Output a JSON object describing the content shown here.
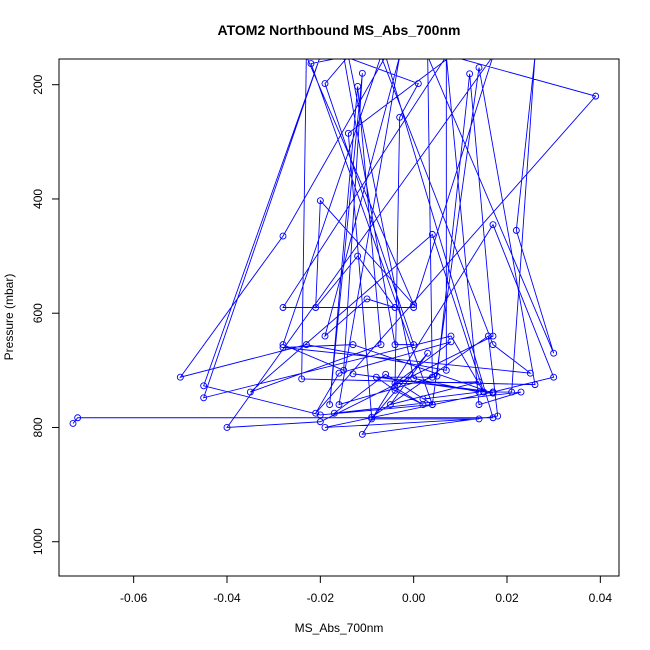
{
  "chart_data": {
    "type": "line",
    "title": "ATOM2 Northbound MS_Abs_700nm",
    "xlabel": "MS_Abs_700nm",
    "ylabel": "Pressure (mbar)",
    "xlim": [
      -0.076,
      0.044
    ],
    "ylim": [
      1060,
      155
    ],
    "y_axis_inverted": true,
    "x_ticks": [
      -0.06,
      -0.04,
      -0.02,
      0.0,
      0.02,
      0.04
    ],
    "x_tick_labels": [
      "-0.06",
      "-0.04",
      "-0.02",
      "0.00",
      "0.02",
      "0.04"
    ],
    "y_ticks": [
      200,
      400,
      600,
      800,
      1000
    ],
    "y_tick_labels": [
      "200",
      "400",
      "600",
      "800",
      "1000"
    ],
    "grid": false,
    "series_color": "#0000ff",
    "series": [
      {
        "marker": "open-circle",
        "points": [
          {
            "x": -0.073,
            "y": 793
          },
          {
            "x": -0.072,
            "y": 783
          },
          {
            "x": 0.017,
            "y": 783
          },
          {
            "x": -0.006,
            "y": 150
          },
          {
            "x": -0.028,
            "y": 465
          },
          {
            "x": -0.05,
            "y": 712
          },
          {
            "x": -0.023,
            "y": 655
          },
          {
            "x": 0.007,
            "y": 700
          },
          {
            "x": 0.007,
            "y": 150
          },
          {
            "x": -0.028,
            "y": 590
          },
          {
            "x": 0.0,
            "y": 590
          },
          {
            "x": 0.017,
            "y": 150
          },
          {
            "x": -0.04,
            "y": 800
          },
          {
            "x": -0.02,
            "y": 790
          },
          {
            "x": 0.017,
            "y": 640
          },
          {
            "x": 0.012,
            "y": 181
          },
          {
            "x": 0.005,
            "y": 710
          },
          {
            "x": -0.016,
            "y": 760
          },
          {
            "x": -0.003,
            "y": 150
          },
          {
            "x": -0.019,
            "y": 640
          },
          {
            "x": -0.01,
            "y": 575
          },
          {
            "x": -0.004,
            "y": 590
          },
          {
            "x": -0.012,
            "y": 500
          },
          {
            "x": -0.021,
            "y": 590
          },
          {
            "x": -0.02,
            "y": 403
          },
          {
            "x": 0.0,
            "y": 585
          },
          {
            "x": -0.023,
            "y": 150
          },
          {
            "x": -0.024,
            "y": 715
          },
          {
            "x": 0.026,
            "y": 725
          },
          {
            "x": 0.014,
            "y": 170
          },
          {
            "x": 0.004,
            "y": 760
          },
          {
            "x": -0.02,
            "y": 778
          },
          {
            "x": -0.045,
            "y": 727
          },
          {
            "x": -0.02,
            "y": 150
          },
          {
            "x": -0.045,
            "y": 748
          },
          {
            "x": 0.008,
            "y": 640
          },
          {
            "x": 0.015,
            "y": 738
          },
          {
            "x": 0.004,
            "y": 462
          },
          {
            "x": -0.035,
            "y": 738
          },
          {
            "x": -0.007,
            "y": 655
          },
          {
            "x": -0.012,
            "y": 203
          },
          {
            "x": -0.018,
            "y": 760
          },
          {
            "x": -0.011,
            "y": 180
          },
          {
            "x": -0.015,
            "y": 700
          },
          {
            "x": -0.028,
            "y": 655
          },
          {
            "x": -0.007,
            "y": 150
          },
          {
            "x": 0.017,
            "y": 655
          },
          {
            "x": 0.025,
            "y": 705
          },
          {
            "x": -0.028,
            "y": 660
          },
          {
            "x": -0.013,
            "y": 655
          },
          {
            "x": 0.017,
            "y": 740
          },
          {
            "x": -0.013,
            "y": 706
          },
          {
            "x": 0.017,
            "y": 738
          },
          {
            "x": -0.019,
            "y": 800
          },
          {
            "x": 0.014,
            "y": 785
          },
          {
            "x": -0.009,
            "y": 785
          },
          {
            "x": 0.003,
            "y": 670
          },
          {
            "x": -0.005,
            "y": 760
          },
          {
            "x": 0.014,
            "y": 720
          },
          {
            "x": -0.004,
            "y": 723
          },
          {
            "x": 0.008,
            "y": 650
          },
          {
            "x": -0.016,
            "y": 705
          },
          {
            "x": -0.021,
            "y": 775
          },
          {
            "x": 0.039,
            "y": 220
          },
          {
            "x": 0.008,
            "y": 150
          },
          {
            "x": -0.014,
            "y": 285
          },
          {
            "x": -0.009,
            "y": 782
          },
          {
            "x": 0.016,
            "y": 640
          },
          {
            "x": 0.018,
            "y": 780
          },
          {
            "x": -0.011,
            "y": 812
          },
          {
            "x": 0.017,
            "y": 445
          },
          {
            "x": 0.03,
            "y": 712
          },
          {
            "x": 0.017,
            "y": 738
          },
          {
            "x": 0.021,
            "y": 738
          },
          {
            "x": 0.026,
            "y": 150
          },
          {
            "x": 0.022,
            "y": 455
          },
          {
            "x": 0.03,
            "y": 670
          },
          {
            "x": 0.003,
            "y": 150
          },
          {
            "x": 0.004,
            "y": 712
          },
          {
            "x": -0.008,
            "y": 712
          },
          {
            "x": -0.004,
            "y": 735
          },
          {
            "x": 0.002,
            "y": 760
          },
          {
            "x": -0.004,
            "y": 730
          },
          {
            "x": -0.003,
            "y": 257
          },
          {
            "x": 0.001,
            "y": 198
          },
          {
            "x": -0.015,
            "y": 150
          },
          {
            "x": -0.004,
            "y": 655
          },
          {
            "x": 0.0,
            "y": 655
          },
          {
            "x": -0.019,
            "y": 198
          },
          {
            "x": -0.014,
            "y": 150
          },
          {
            "x": 0.007,
            "y": 150
          },
          {
            "x": 0.014,
            "y": 760
          },
          {
            "x": 0.023,
            "y": 738
          },
          {
            "x": -0.017,
            "y": 775
          },
          {
            "x": -0.006,
            "y": 707
          },
          {
            "x": 0.004,
            "y": 760
          },
          {
            "x": -0.022,
            "y": 163
          },
          {
            "x": -0.014,
            "y": 150
          },
          {
            "x": 0.0,
            "y": 714
          },
          {
            "x": 0.014,
            "y": 738
          },
          {
            "x": 0.002,
            "y": 750
          }
        ]
      }
    ]
  }
}
